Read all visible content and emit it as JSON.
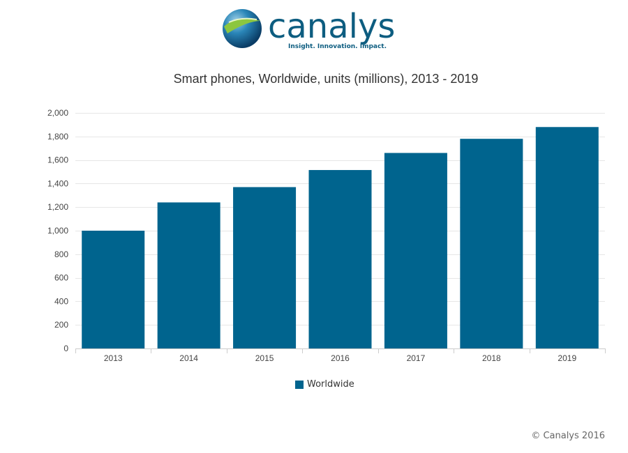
{
  "logo": {
    "name": "canalys",
    "tagline": "Insight. Innovation. Impact."
  },
  "colors": {
    "bar": "#00648e",
    "grid": "#e6e6e6",
    "axis": "#cccccc",
    "brand": "#0d5d80"
  },
  "legend": {
    "label": "Worldwide"
  },
  "credit": "© Canalys 2016",
  "chart_data": {
    "type": "bar",
    "title": "Smart phones, Worldwide, units (millions), 2013 - 2019",
    "xlabel": "",
    "ylabel": "",
    "categories": [
      "2013",
      "2014",
      "2015",
      "2016",
      "2017",
      "2018",
      "2019"
    ],
    "series": [
      {
        "name": "Worldwide",
        "values": [
          1000,
          1240,
          1370,
          1515,
          1660,
          1780,
          1880
        ]
      }
    ],
    "ylim": [
      0,
      2000
    ],
    "yticks": [
      0,
      200,
      400,
      600,
      800,
      1000,
      1200,
      1400,
      1600,
      1800,
      2000
    ],
    "ytick_labels": [
      "0",
      "200",
      "400",
      "600",
      "800",
      "1,000",
      "1,200",
      "1,400",
      "1,600",
      "1,800",
      "2,000"
    ],
    "grid": true,
    "legend_position": "bottom-center"
  }
}
